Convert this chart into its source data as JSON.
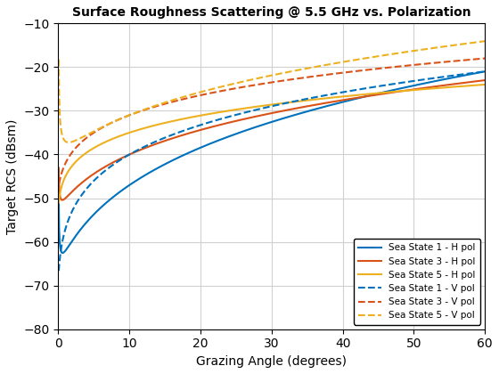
{
  "title": "Surface Roughness Scattering @ 5.5 GHz vs. Polarization",
  "xlabel": "Grazing Angle (degrees)",
  "ylabel": "Target RCS (dBsm)",
  "xlim": [
    0,
    60
  ],
  "ylim": [
    -80,
    -10
  ],
  "xticks": [
    0,
    10,
    20,
    30,
    40,
    50,
    60
  ],
  "yticks": [
    -80,
    -70,
    -60,
    -50,
    -40,
    -30,
    -20,
    -10
  ],
  "colors": {
    "ss1": "#0072BD",
    "ss3": "#D95319",
    "ss5": "#EDB120"
  },
  "legend_labels": [
    "Sea State 1 - H pol",
    "Sea State 3 - H pol",
    "Sea State 5 - H pol",
    "Sea State 1 - V pol",
    "Sea State 3 - V pol",
    "Sea State 5 - V pol"
  ],
  "background_color": "#ffffff",
  "grid_color": "#d0d0d0"
}
